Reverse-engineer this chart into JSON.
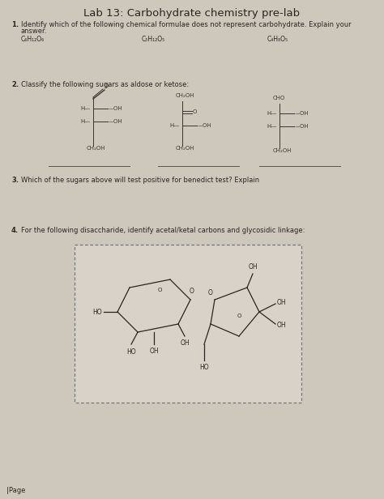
{
  "title": "Lab 13: Carbohydrate chemistry pre-lab",
  "bg_color": "#cec8bc",
  "page_bg": "#e2ddd4",
  "q1_label": "1.",
  "q1_text_line1": "Identify which of the following chemical formulae does not represent carbohydrate. Explain your",
  "q1_text_line2": "answer.",
  "formula1": "C₆H₁₂O₆",
  "formula2": "C₅H₁₂O₅",
  "formula3": "C₄H₈O₅",
  "q2_label": "2.",
  "q2_text": "Classify the following sugars as aldose or ketose:",
  "q3_label": "3.",
  "q3_text": "Which of the sugars above will test positive for benedict test? Explain",
  "q4_label": "4.",
  "q4_text": "For the following disaccharide, identify acetal/ketal carbons and glycosidic linkage:",
  "page_label": "|Page",
  "font_color": "#2a2520",
  "title_fontsize": 9.5,
  "body_fontsize": 6.0,
  "formula_fontsize": 5.5,
  "struct_color": "#3a3530",
  "struct_lw": 0.7
}
